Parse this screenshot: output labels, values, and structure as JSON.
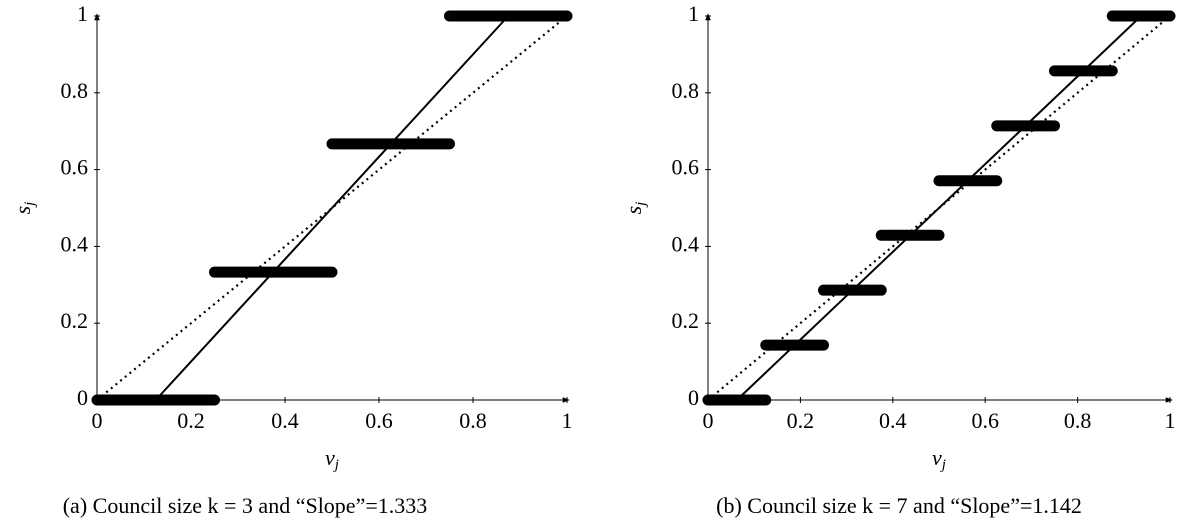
{
  "chart_data": [
    {
      "type": "line",
      "caption": "(a) Council size k = 3 and “Slope”=1.333",
      "xlabel": "v",
      "xlabel_sub": "j",
      "ylabel": "s",
      "ylabel_sub": "j",
      "xlim": [
        0,
        1
      ],
      "ylim": [
        0,
        1
      ],
      "xticks": [
        0,
        0.2,
        0.4,
        0.6,
        0.8,
        1
      ],
      "yticks": [
        0,
        0.2,
        0.4,
        0.6,
        0.8,
        1
      ],
      "series": [
        {
          "style": "thick",
          "color": "#000000",
          "x": [
            0,
            0.25
          ],
          "values": [
            0,
            0
          ]
        },
        {
          "style": "thick",
          "color": "#000000",
          "x": [
            0.25,
            0.5
          ],
          "values": [
            0.333,
            0.333
          ]
        },
        {
          "style": "thick",
          "color": "#000000",
          "x": [
            0.5,
            0.75
          ],
          "values": [
            0.667,
            0.667
          ]
        },
        {
          "style": "thick",
          "color": "#000000",
          "x": [
            0.75,
            1
          ],
          "values": [
            1,
            1
          ]
        },
        {
          "style": "solid",
          "color": "#000000",
          "x": [
            0.125,
            0.875
          ],
          "values": [
            0,
            1
          ]
        },
        {
          "style": "dotted",
          "color": "#000000",
          "x": [
            0,
            1
          ],
          "values": [
            0,
            1
          ]
        }
      ]
    },
    {
      "type": "line",
      "caption": "(b) Council size k = 7 and “Slope”=1.142",
      "xlabel": "v",
      "xlabel_sub": "j",
      "ylabel": "s",
      "ylabel_sub": "j",
      "xlim": [
        0,
        1
      ],
      "ylim": [
        0,
        1
      ],
      "xticks": [
        0,
        0.2,
        0.4,
        0.6,
        0.8,
        1
      ],
      "yticks": [
        0,
        0.2,
        0.4,
        0.6,
        0.8,
        1
      ],
      "series": [
        {
          "style": "thick",
          "color": "#000000",
          "x": [
            0,
            0.125
          ],
          "values": [
            0,
            0
          ]
        },
        {
          "style": "thick",
          "color": "#000000",
          "x": [
            0.125,
            0.25
          ],
          "values": [
            0.143,
            0.143
          ]
        },
        {
          "style": "thick",
          "color": "#000000",
          "x": [
            0.25,
            0.375
          ],
          "values": [
            0.286,
            0.286
          ]
        },
        {
          "style": "thick",
          "color": "#000000",
          "x": [
            0.375,
            0.5
          ],
          "values": [
            0.429,
            0.429
          ]
        },
        {
          "style": "thick",
          "color": "#000000",
          "x": [
            0.5,
            0.625
          ],
          "values": [
            0.571,
            0.571
          ]
        },
        {
          "style": "thick",
          "color": "#000000",
          "x": [
            0.625,
            0.75
          ],
          "values": [
            0.714,
            0.714
          ]
        },
        {
          "style": "thick",
          "color": "#000000",
          "x": [
            0.75,
            0.875
          ],
          "values": [
            0.857,
            0.857
          ]
        },
        {
          "style": "thick",
          "color": "#000000",
          "x": [
            0.875,
            1
          ],
          "values": [
            1,
            1
          ]
        },
        {
          "style": "solid",
          "color": "#000000",
          "x": [
            0.0625,
            0.9375
          ],
          "values": [
            0,
            1
          ]
        },
        {
          "style": "dotted",
          "color": "#000000",
          "x": [
            0,
            1
          ],
          "values": [
            0,
            1
          ]
        }
      ]
    }
  ]
}
